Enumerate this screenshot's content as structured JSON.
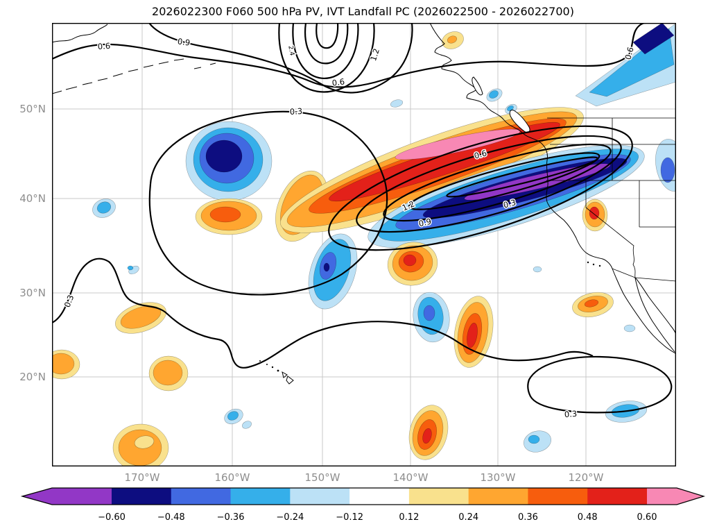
{
  "chart_data": {
    "type": "heatmap",
    "subtype": "geographic filled-contour (shading) + line-contour map, North Pacific / western North America",
    "title": "2026022300 F060 500 hPa PV, IVT Landfall PC (2026022500 - 2026022700)",
    "init_time": "2026022300",
    "forecast_hour": "F060",
    "valid_window": "2026022500 - 2026022700",
    "x_axis": {
      "ticks": [
        "170°W",
        "160°W",
        "150°W",
        "140°W",
        "130°W",
        "120°W"
      ]
    },
    "y_axis": {
      "ticks": [
        "50°N",
        "40°N",
        "30°N",
        "20°N"
      ]
    },
    "line_contours": {
      "field": "500 hPa PV",
      "color": "#000000",
      "labeled_levels": [
        0.3,
        0.6,
        0.9,
        1.2,
        2.4
      ],
      "note": "tight packed contours / trough near top center (Gulf of Alaska); nested elongated maximum (0.3-1.2+) along 40-46N over the eastern Pacific; large closed 0.3 contour around the central Pacific low; 0.3 contours near 25N southwest and southeast"
    },
    "contour_labels": [
      "0.6",
      "0.9",
      "2.4",
      "1.2",
      "0.6",
      "0.3",
      "0.6",
      "0.6",
      "1.2",
      "0.9",
      "0.3",
      "0.3",
      "0.3"
    ],
    "shading": {
      "field": "IVT Landfall PC"
    },
    "colorbar": {
      "orientation": "horizontal",
      "extend": "both",
      "tick_labels": [
        "−0.60",
        "−0.48",
        "−0.36",
        "−0.24",
        "−0.12",
        "0.12",
        "0.24",
        "0.36",
        "0.48",
        "0.60"
      ],
      "ticks": [
        -0.6,
        -0.48,
        -0.36,
        -0.24,
        -0.12,
        0.12,
        0.24,
        0.36,
        0.48,
        0.6
      ],
      "colors": [
        "#9237C6",
        "#0D0D80",
        "#4169E1",
        "#35AFEA",
        "#BCE1F6",
        "#FFFFFF",
        "#F9E18D",
        "#FFA630",
        "#F75D0D",
        "#E3211A",
        "#F888B4"
      ]
    },
    "shaded_anomalies": [
      {
        "sign": "positive",
        "peak": "> 0.60 (pink core)",
        "location": "elongated band ~43-49N, 152-127W, north of the negative band"
      },
      {
        "sign": "negative",
        "peak": "< -0.60 (purple core)",
        "location": "elongated band ~38-45N, 140-115W reaching the Oregon/California coast"
      },
      {
        "sign": "negative",
        "peak": "< -0.60 (navy core)",
        "location": "closed cell near 45N, 166W"
      },
      {
        "sign": "positive",
        "peak": "0.36 to 0.48",
        "location": "cell near 38N, 166W"
      },
      {
        "sign": "negative",
        "peak": "-0.36 to -0.48",
        "location": "band across the top-right corner along the British Columbia coast"
      },
      {
        "sign": "mixed",
        "peak": "|PC| 0.12-0.48",
        "location": "numerous smaller cells scattered 10-35N across the basin"
      }
    ],
    "geography": [
      "Aleutian Islands",
      "Alaska panhandle",
      "British Columbia coast",
      "Vancouver Island",
      "US West Coast",
      "Baja California / Gulf of California",
      "Hawaiian Islands",
      "US state borders"
    ]
  }
}
